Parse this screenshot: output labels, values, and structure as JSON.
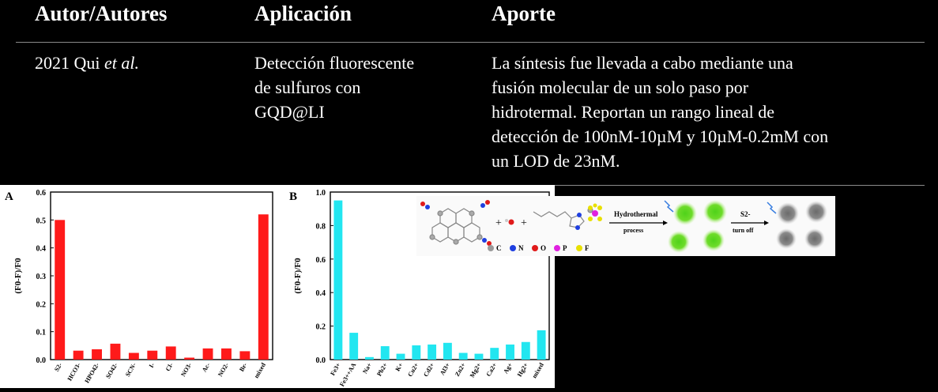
{
  "table": {
    "headers": [
      "Autor/Autores",
      "Aplicación",
      "Aporte"
    ],
    "row": {
      "author": "2021 Qui",
      "author_italic": "et al.",
      "application_lines": [
        "Detección fluorescente",
        "de sulfuros con",
        "GQD@LI"
      ],
      "contribution_lines": [
        "La síntesis fue llevada a cabo mediante una",
        "fusión molecular de un solo paso por",
        "hidrotermal. Reportan un rango lineal de",
        "detección de 100nM-10µM y 10µM-0.2mM con",
        "un LOD de 23nM."
      ]
    }
  },
  "chart_data": [
    {
      "type": "bar",
      "panel_label": "A",
      "ylabel": "(F0-F)/F0",
      "ylim": [
        0,
        0.6
      ],
      "yticks": [
        "0.0",
        "0.1",
        "0.2",
        "0.3",
        "0.4",
        "0.5",
        "0.6"
      ],
      "categories": [
        "S2-",
        "HCO3-",
        "HPO42-",
        "SO42-",
        "SCN-",
        "I-",
        "Cl-",
        "NO3-",
        "Ac-",
        "NO2-",
        "Br-",
        "mixed"
      ],
      "values": [
        0.5,
        0.032,
        0.037,
        0.057,
        0.024,
        0.032,
        0.047,
        0.007,
        0.04,
        0.04,
        0.03,
        0.52
      ],
      "color": "#ff1a1a"
    },
    {
      "type": "bar",
      "panel_label": "B",
      "ylabel": "(F0-F)/F0",
      "ylim": [
        0,
        1.0
      ],
      "yticks": [
        "0.0",
        "0.2",
        "0.4",
        "0.6",
        "0.8",
        "1.0"
      ],
      "categories": [
        "Fe3+",
        "Fe3++AA",
        "Na+",
        "Pb2+",
        "K+",
        "Cu2+",
        "Cd2+",
        "Al3+",
        "Zn2+",
        "Mg2+",
        "Ca2+",
        "Ag+",
        "Hg2+",
        "mixed"
      ],
      "values": [
        0.95,
        0.16,
        0.015,
        0.08,
        0.035,
        0.085,
        0.09,
        0.1,
        0.04,
        0.035,
        0.07,
        0.09,
        0.105,
        0.175
      ],
      "color": "#22e6f0"
    }
  ],
  "scheme": {
    "plus": "+",
    "step1_label": "Hydrothermal",
    "step1_sub": "process",
    "step2_label": "S2-",
    "step2_sub": "turn off",
    "legend": [
      {
        "label": "C",
        "color": "#9a9a9a"
      },
      {
        "label": "N",
        "color": "#1f3fe0"
      },
      {
        "label": "O",
        "color": "#e01a1a"
      },
      {
        "label": "P",
        "color": "#e020e0"
      },
      {
        "label": "F",
        "color": "#e8e000"
      }
    ]
  }
}
